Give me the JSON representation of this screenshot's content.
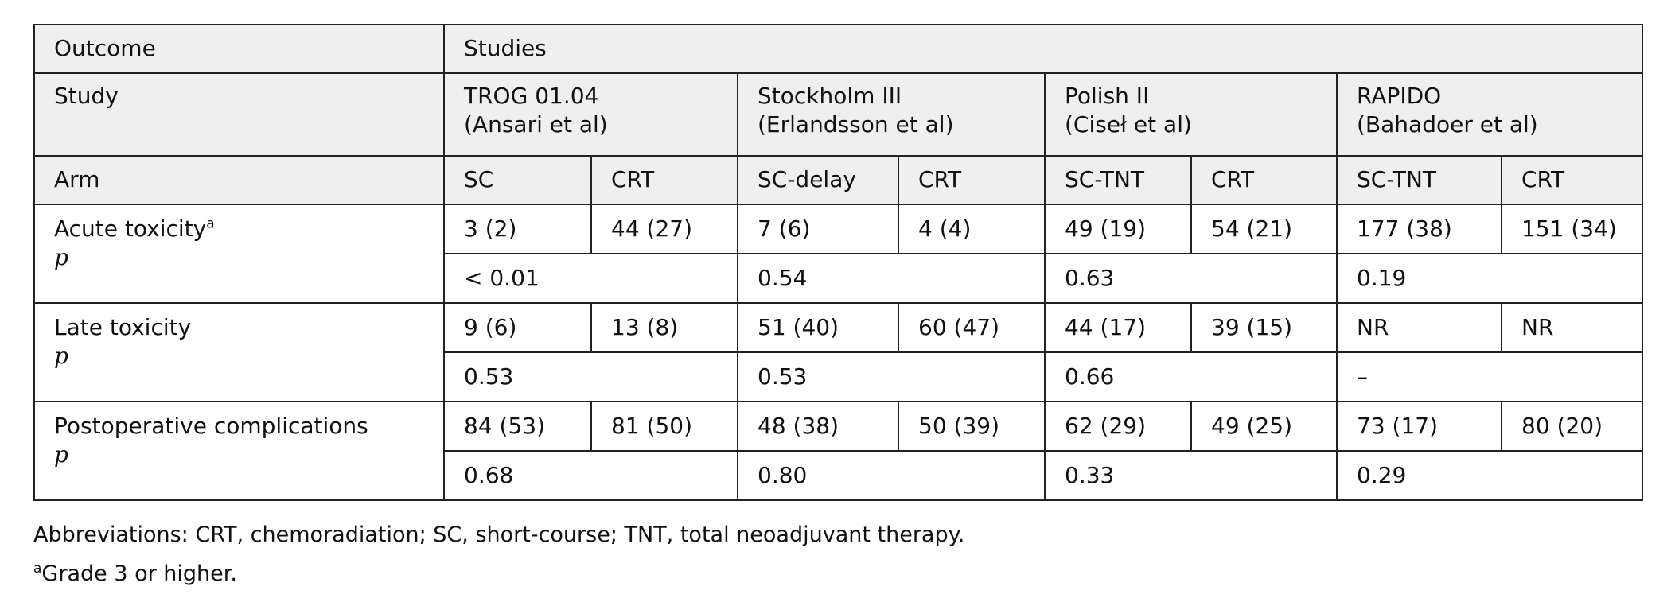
{
  "table": {
    "header": {
      "outcome": "Outcome",
      "studies": "Studies",
      "study": "Study",
      "study_list": [
        {
          "name": "TROG 01.04",
          "authors": "(Ansari et al)"
        },
        {
          "name": "Stockholm III",
          "authors": "(Erlandsson et al)"
        },
        {
          "name": "Polish II",
          "authors": "(Ciseł et al)"
        },
        {
          "name": "RAPIDO",
          "authors": "(Bahadoer et al)"
        }
      ],
      "arm": "Arm",
      "arms": [
        "SC",
        "CRT",
        "SC-delay",
        "CRT",
        "SC-TNT",
        "CRT",
        "SC-TNT",
        "CRT"
      ]
    },
    "rows": [
      {
        "outcome": "Acute toxicity",
        "sup": "a",
        "p_label": "p",
        "values": [
          "3 (2)",
          "44 (27)",
          "7 (6)",
          "4 (4)",
          "49 (19)",
          "54 (21)",
          "177 (38)",
          "151 (34)"
        ],
        "p_values": [
          "< 0.01",
          "0.54",
          "0.63",
          "0.19"
        ]
      },
      {
        "outcome": "Late toxicity",
        "p_label": "p",
        "values": [
          "9 (6)",
          "13 (8)",
          "51 (40)",
          "60 (47)",
          "44 (17)",
          "39 (15)",
          "NR",
          "NR"
        ],
        "p_values": [
          "0.53",
          "0.53",
          "0.66",
          "–"
        ]
      },
      {
        "outcome": "Postoperative complications",
        "p_label": "p",
        "values": [
          "84 (53)",
          "81 (50)",
          "48 (38)",
          "50 (39)",
          "62 (29)",
          "49 (25)",
          "73 (17)",
          "80 (20)"
        ],
        "p_values": [
          "0.68",
          "0.80",
          "0.33",
          "0.29"
        ]
      }
    ]
  },
  "footnotes": {
    "abbreviations": "Abbreviations: CRT, chemoradiation; SC, short-course; TNT, total neoadjuvant therapy.",
    "mark": "a",
    "text": "Grade 3 or higher."
  }
}
